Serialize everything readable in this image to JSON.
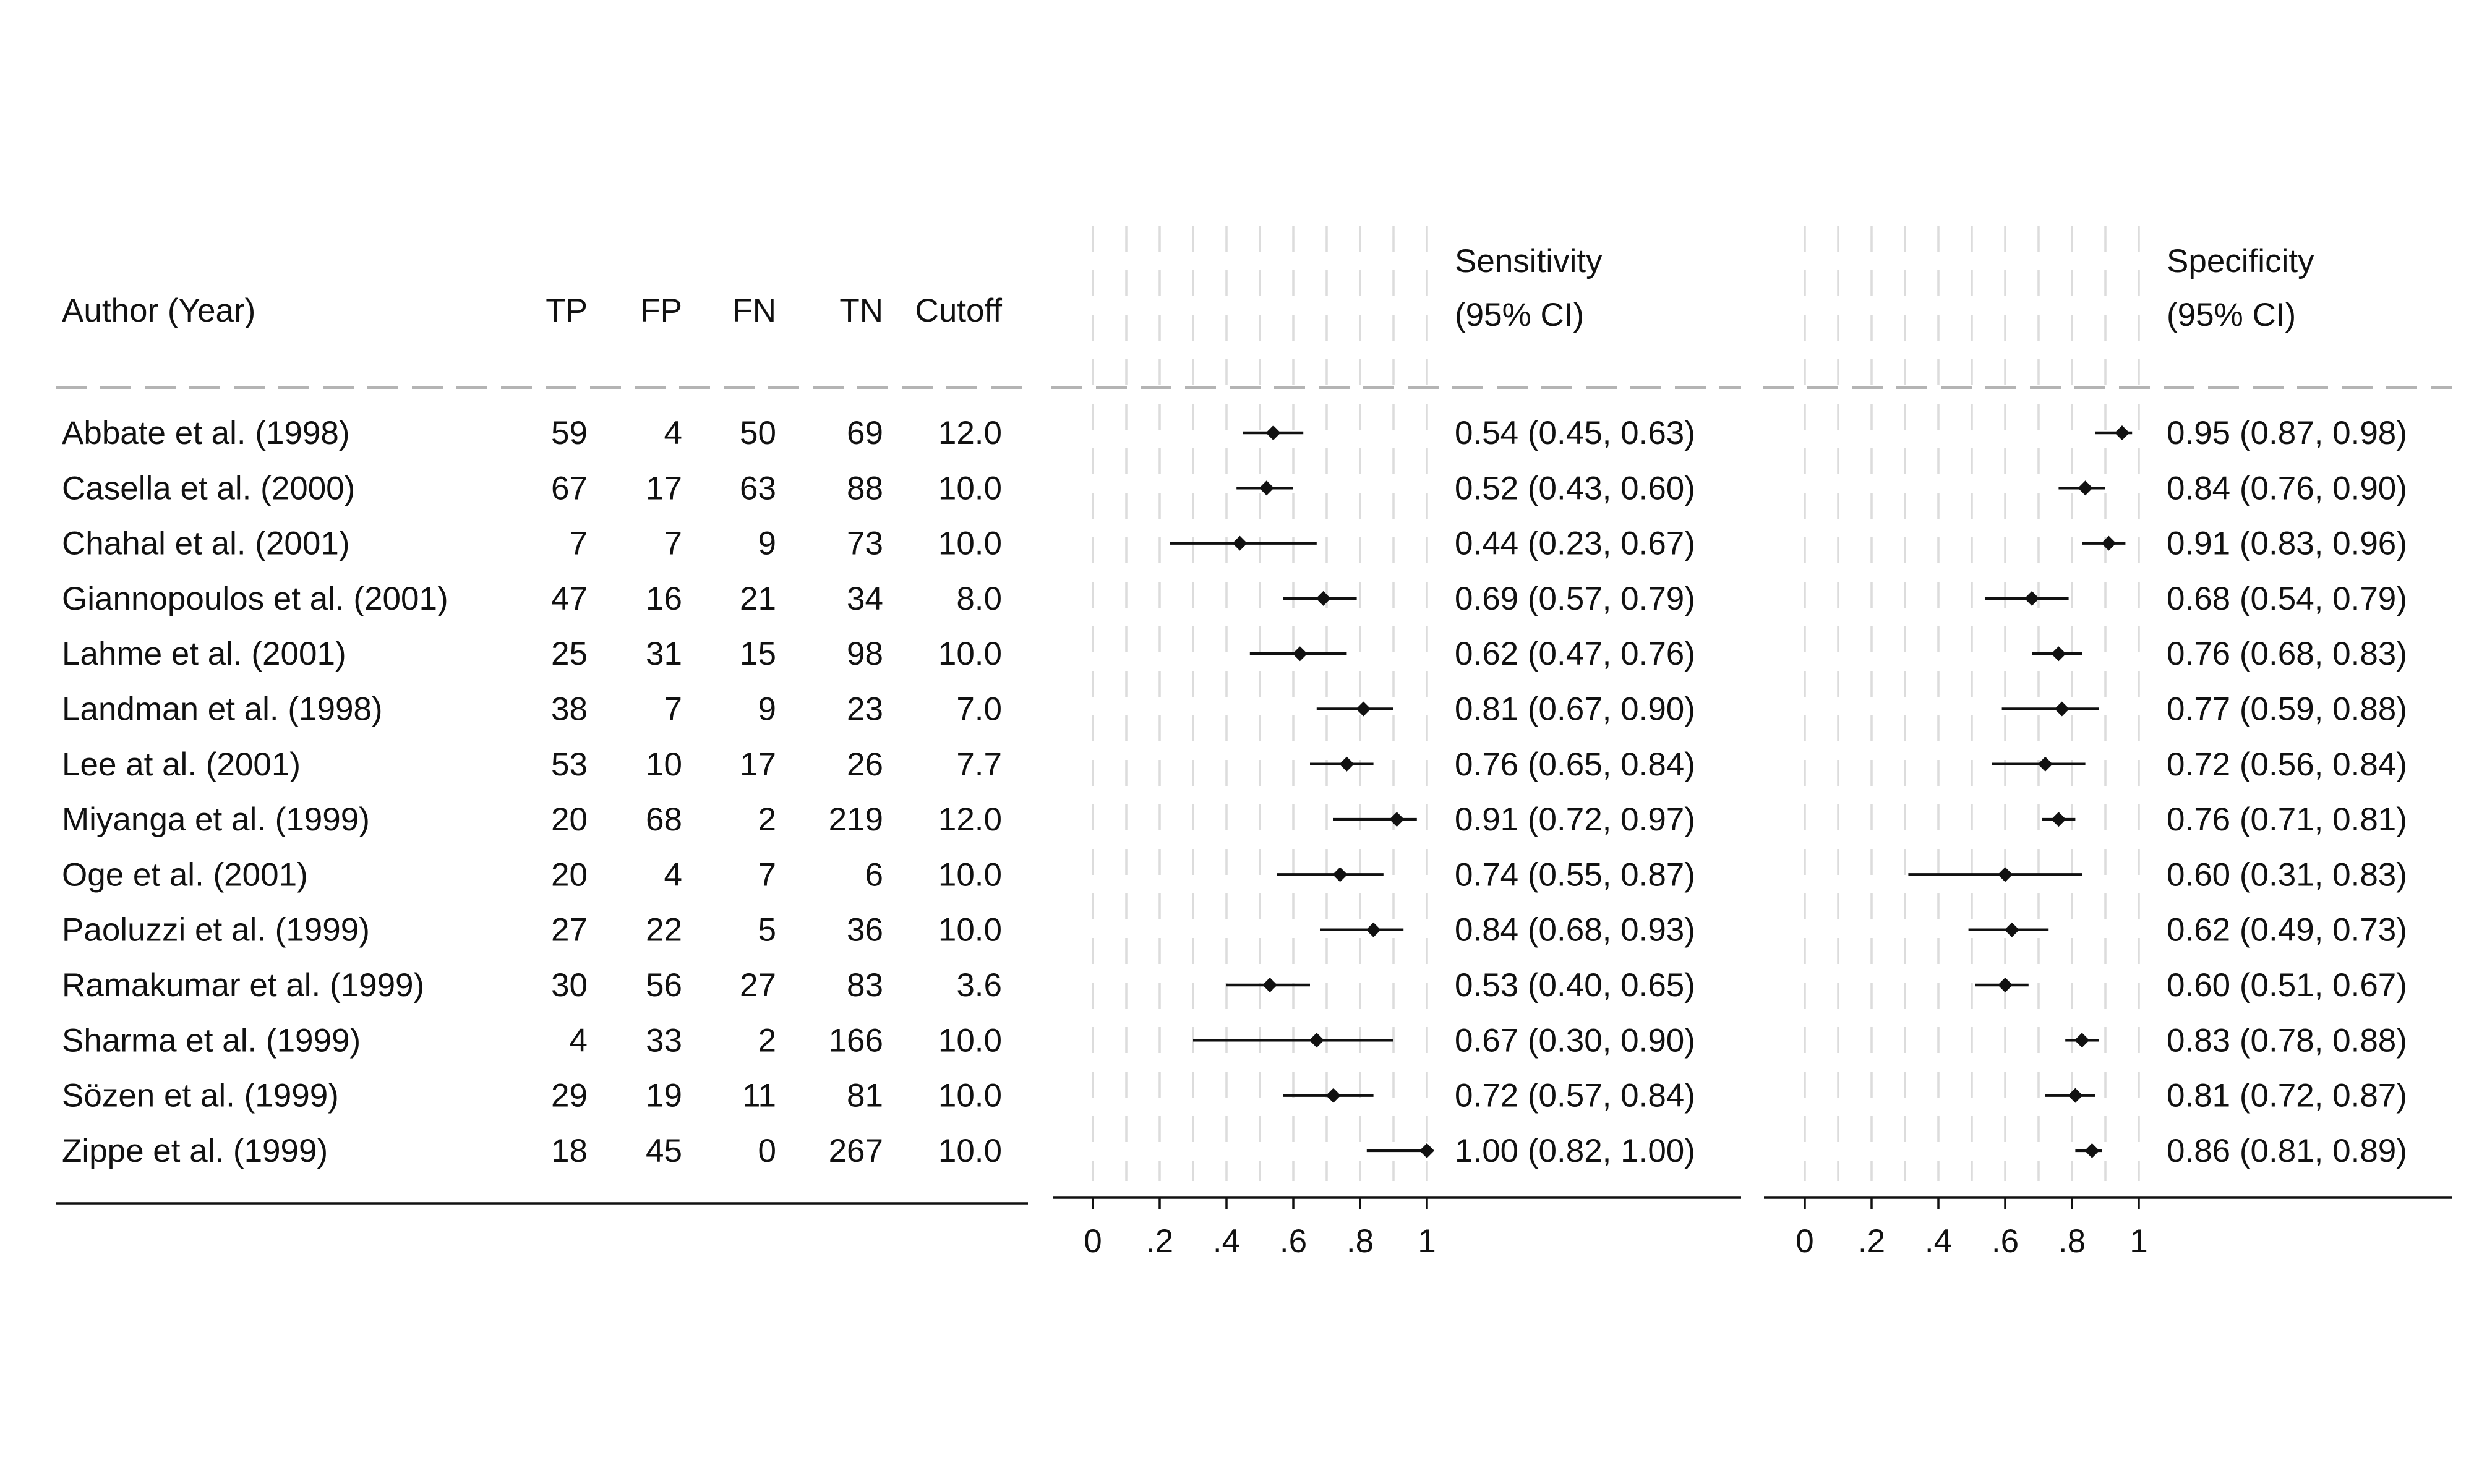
{
  "chart_data": {
    "type": "forest",
    "table": {
      "columns": [
        "Author (Year)",
        "TP",
        "FP",
        "FN",
        "TN",
        "Cutoff"
      ],
      "rows": [
        {
          "author": "Abbate et al. (1998)",
          "tp": "59",
          "fp": "4",
          "fn": "50",
          "tn": "69",
          "cutoff": "12.0"
        },
        {
          "author": "Casella et al. (2000)",
          "tp": "67",
          "fp": "17",
          "fn": "63",
          "tn": "88",
          "cutoff": "10.0"
        },
        {
          "author": "Chahal et al. (2001)",
          "tp": "7",
          "fp": "7",
          "fn": "9",
          "tn": "73",
          "cutoff": "10.0"
        },
        {
          "author": "Giannopoulos et al. (2001)",
          "tp": "47",
          "fp": "16",
          "fn": "21",
          "tn": "34",
          "cutoff": "8.0"
        },
        {
          "author": "Lahme et al. (2001)",
          "tp": "25",
          "fp": "31",
          "fn": "15",
          "tn": "98",
          "cutoff": "10.0"
        },
        {
          "author": "Landman et al. (1998)",
          "tp": "38",
          "fp": "7",
          "fn": "9",
          "tn": "23",
          "cutoff": "7.0"
        },
        {
          "author": "Lee at al. (2001)",
          "tp": "53",
          "fp": "10",
          "fn": "17",
          "tn": "26",
          "cutoff": "7.7"
        },
        {
          "author": "Miyanga et al. (1999)",
          "tp": "20",
          "fp": "68",
          "fn": "2",
          "tn": "219",
          "cutoff": "12.0"
        },
        {
          "author": "Oge et al. (2001)",
          "tp": "20",
          "fp": "4",
          "fn": "7",
          "tn": "6",
          "cutoff": "10.0"
        },
        {
          "author": "Paoluzzi et al. (1999)",
          "tp": "27",
          "fp": "22",
          "fn": "5",
          "tn": "36",
          "cutoff": "10.0"
        },
        {
          "author": "Ramakumar et al. (1999)",
          "tp": "30",
          "fp": "56",
          "fn": "27",
          "tn": "83",
          "cutoff": "3.6"
        },
        {
          "author": "Sharma et al. (1999)",
          "tp": "4",
          "fp": "33",
          "fn": "2",
          "tn": "166",
          "cutoff": "10.0"
        },
        {
          "author": "Sözen et al. (1999)",
          "tp": "29",
          "fp": "19",
          "fn": "11",
          "tn": "81",
          "cutoff": "10.0"
        },
        {
          "author": "Zippe et al. (1999)",
          "tp": "18",
          "fp": "45",
          "fn": "0",
          "tn": "267",
          "cutoff": "10.0"
        }
      ]
    },
    "panels": [
      {
        "name": "sensitivity",
        "header_lines": [
          "Sensitivity",
          "(95% CI)"
        ],
        "xlim": [
          0,
          1
        ],
        "ticks": [
          0,
          0.2,
          0.4,
          0.6,
          0.8,
          1
        ],
        "tick_labels": [
          "0",
          ".2",
          ".4",
          ".6",
          ".8",
          "1"
        ],
        "points": [
          {
            "est": 0.54,
            "lo": 0.45,
            "hi": 0.63,
            "label": "0.54 (0.45, 0.63)"
          },
          {
            "est": 0.52,
            "lo": 0.43,
            "hi": 0.6,
            "label": "0.52 (0.43, 0.60)"
          },
          {
            "est": 0.44,
            "lo": 0.23,
            "hi": 0.67,
            "label": "0.44 (0.23, 0.67)"
          },
          {
            "est": 0.69,
            "lo": 0.57,
            "hi": 0.79,
            "label": "0.69 (0.57, 0.79)"
          },
          {
            "est": 0.62,
            "lo": 0.47,
            "hi": 0.76,
            "label": "0.62 (0.47, 0.76)"
          },
          {
            "est": 0.81,
            "lo": 0.67,
            "hi": 0.9,
            "label": "0.81 (0.67, 0.90)"
          },
          {
            "est": 0.76,
            "lo": 0.65,
            "hi": 0.84,
            "label": "0.76 (0.65, 0.84)"
          },
          {
            "est": 0.91,
            "lo": 0.72,
            "hi": 0.97,
            "label": "0.91 (0.72, 0.97)"
          },
          {
            "est": 0.74,
            "lo": 0.55,
            "hi": 0.87,
            "label": "0.74 (0.55, 0.87)"
          },
          {
            "est": 0.84,
            "lo": 0.68,
            "hi": 0.93,
            "label": "0.84 (0.68, 0.93)"
          },
          {
            "est": 0.53,
            "lo": 0.4,
            "hi": 0.65,
            "label": "0.53 (0.40, 0.65)"
          },
          {
            "est": 0.67,
            "lo": 0.3,
            "hi": 0.9,
            "label": "0.67 (0.30, 0.90)"
          },
          {
            "est": 0.72,
            "lo": 0.57,
            "hi": 0.84,
            "label": "0.72 (0.57, 0.84)"
          },
          {
            "est": 1.0,
            "lo": 0.82,
            "hi": 1.0,
            "label": "1.00 (0.82, 1.00)"
          }
        ]
      },
      {
        "name": "specificity",
        "header_lines": [
          "Specificity",
          "(95% CI)"
        ],
        "xlim": [
          0,
          1
        ],
        "ticks": [
          0,
          0.2,
          0.4,
          0.6,
          0.8,
          1
        ],
        "tick_labels": [
          "0",
          ".2",
          ".4",
          ".6",
          ".8",
          "1"
        ],
        "points": [
          {
            "est": 0.95,
            "lo": 0.87,
            "hi": 0.98,
            "label": "0.95 (0.87, 0.98)"
          },
          {
            "est": 0.84,
            "lo": 0.76,
            "hi": 0.9,
            "label": "0.84 (0.76, 0.90)"
          },
          {
            "est": 0.91,
            "lo": 0.83,
            "hi": 0.96,
            "label": "0.91 (0.83, 0.96)"
          },
          {
            "est": 0.68,
            "lo": 0.54,
            "hi": 0.79,
            "label": "0.68 (0.54, 0.79)"
          },
          {
            "est": 0.76,
            "lo": 0.68,
            "hi": 0.83,
            "label": "0.76 (0.68, 0.83)"
          },
          {
            "est": 0.77,
            "lo": 0.59,
            "hi": 0.88,
            "label": "0.77 (0.59, 0.88)"
          },
          {
            "est": 0.72,
            "lo": 0.56,
            "hi": 0.84,
            "label": "0.72 (0.56, 0.84)"
          },
          {
            "est": 0.76,
            "lo": 0.71,
            "hi": 0.81,
            "label": "0.76 (0.71, 0.81)"
          },
          {
            "est": 0.6,
            "lo": 0.31,
            "hi": 0.83,
            "label": "0.60 (0.31, 0.83)"
          },
          {
            "est": 0.62,
            "lo": 0.49,
            "hi": 0.73,
            "label": "0.62 (0.49, 0.73)"
          },
          {
            "est": 0.6,
            "lo": 0.51,
            "hi": 0.67,
            "label": "0.60 (0.51, 0.67)"
          },
          {
            "est": 0.83,
            "lo": 0.78,
            "hi": 0.88,
            "label": "0.83 (0.78, 0.88)"
          },
          {
            "est": 0.81,
            "lo": 0.72,
            "hi": 0.87,
            "label": "0.81 (0.72, 0.87)"
          },
          {
            "est": 0.86,
            "lo": 0.81,
            "hi": 0.89,
            "label": "0.86 (0.81, 0.89)"
          }
        ]
      }
    ],
    "grid": true,
    "colors": {
      "ink": "#111111",
      "grid": "#dcdcdc",
      "dash": "#b4b4b4"
    }
  }
}
